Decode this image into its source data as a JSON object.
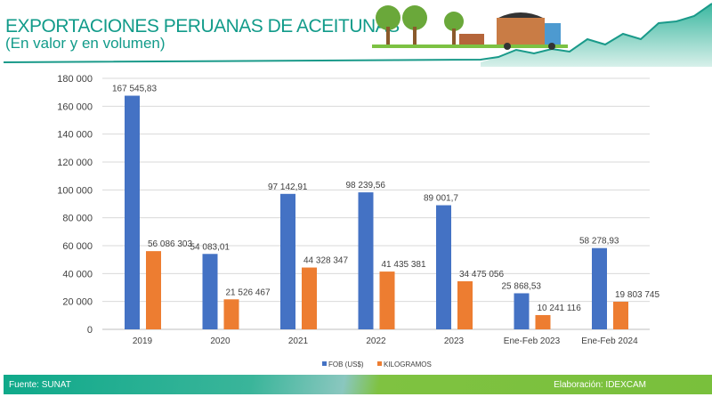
{
  "header": {
    "title": "EXPORTACIONES PERUANAS DE ACEITUNAS",
    "subtitle": "(En valor y en volumen)"
  },
  "chart_data": {
    "type": "bar",
    "categories": [
      "2019",
      "2020",
      "2021",
      "2022",
      "2023",
      "Ene-Feb 2023",
      "Ene-Feb 2024"
    ],
    "series": [
      {
        "name": "FOB (US$)",
        "color": "#4472c4",
        "values": [
          167545.83,
          54083.01,
          97142.91,
          98239.56,
          89001.7,
          25868.53,
          58278.93
        ],
        "labels": [
          "167 545,83",
          "54 083,01",
          "97 142,91",
          "98 239,56",
          "89 001,7",
          "25 868,53",
          "58 278,93"
        ]
      },
      {
        "name": "KILOGRAMOS",
        "color": "#ed7d31",
        "values": [
          56086303,
          21526467,
          44328347,
          41435381,
          34475056,
          10241116,
          19803745
        ],
        "labels": [
          "56 086 303",
          "21 526 467",
          "44 328 347",
          "41 435 381",
          "34 475 056",
          "10 241 116",
          "19 803 745"
        ]
      }
    ],
    "yticks": [
      "0",
      "20 000",
      "40 000",
      "60 000",
      "80 000",
      "100 000",
      "120 000",
      "140 000",
      "160 000",
      "180 000"
    ],
    "ylim": [
      0,
      180000
    ],
    "grid": true,
    "legend": "bottom"
  },
  "footer": {
    "source": "Fuente: SUNAT",
    "credit": "Elaboración:  IDEXCAM"
  }
}
